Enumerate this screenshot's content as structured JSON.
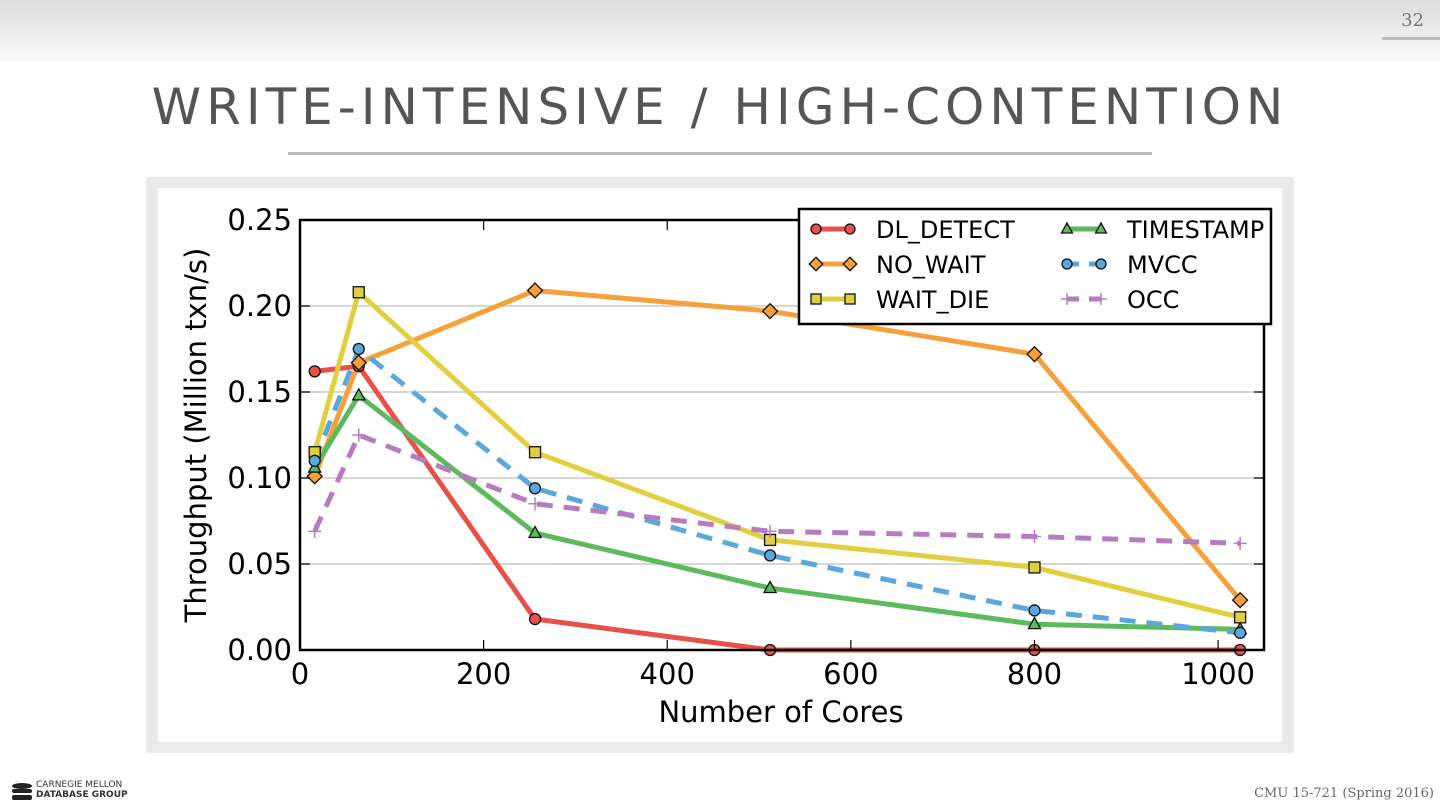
{
  "slide": {
    "number": "32",
    "title": "WRITE-INTENSIVE / HIGH-CONTENTION",
    "footer": "CMU 15-721 (Spring 2016)",
    "logo": {
      "line1": "CARNEGIE MELLON",
      "line2": "DATABASE GROUP"
    }
  },
  "chart_data": {
    "type": "line",
    "title": "",
    "xlabel": "Number of Cores",
    "ylabel": "Throughput (Million txn/s)",
    "xlim": [
      0,
      1050
    ],
    "ylim": [
      0,
      0.25
    ],
    "xticks": [
      0,
      200,
      400,
      600,
      800,
      1000
    ],
    "xtick_labels": [
      "0",
      "200",
      "400",
      "600",
      "800",
      "1000"
    ],
    "yticks": [
      0,
      0.05,
      0.1,
      0.15,
      0.2,
      0.25
    ],
    "ytick_labels": [
      "0.00",
      "0.05",
      "0.10",
      "0.15",
      "0.20",
      "0.25"
    ],
    "grid": "horizontal",
    "legend_position": "top-right",
    "x": [
      16,
      64,
      256,
      512,
      800,
      1024
    ],
    "series": [
      {
        "name": "DL_DETECT",
        "color": "#e8504a",
        "marker": "circle",
        "dash": "solid",
        "values": [
          0.162,
          0.165,
          0.018,
          0.0,
          0.0,
          0.0
        ]
      },
      {
        "name": "NO_WAIT",
        "color": "#f5a03a",
        "marker": "diamond",
        "dash": "solid",
        "values": [
          0.101,
          0.167,
          0.209,
          0.197,
          0.172,
          0.029
        ]
      },
      {
        "name": "WAIT_DIE",
        "color": "#e0d040",
        "marker": "square",
        "dash": "solid",
        "values": [
          0.115,
          0.208,
          0.115,
          0.064,
          0.048,
          0.019
        ]
      },
      {
        "name": "TIMESTAMP",
        "color": "#5cba5c",
        "marker": "triangle",
        "dash": "solid",
        "values": [
          0.106,
          0.148,
          0.068,
          0.036,
          0.015,
          0.012
        ]
      },
      {
        "name": "MVCC",
        "color": "#5aa7dd",
        "marker": "circle",
        "dash": "dashed",
        "values": [
          0.11,
          0.175,
          0.094,
          0.055,
          0.023,
          0.01
        ]
      },
      {
        "name": "OCC",
        "color": "#b57cc0",
        "marker": "plus",
        "dash": "dashed",
        "values": [
          0.069,
          0.125,
          0.085,
          0.069,
          0.066,
          0.062
        ]
      }
    ]
  }
}
